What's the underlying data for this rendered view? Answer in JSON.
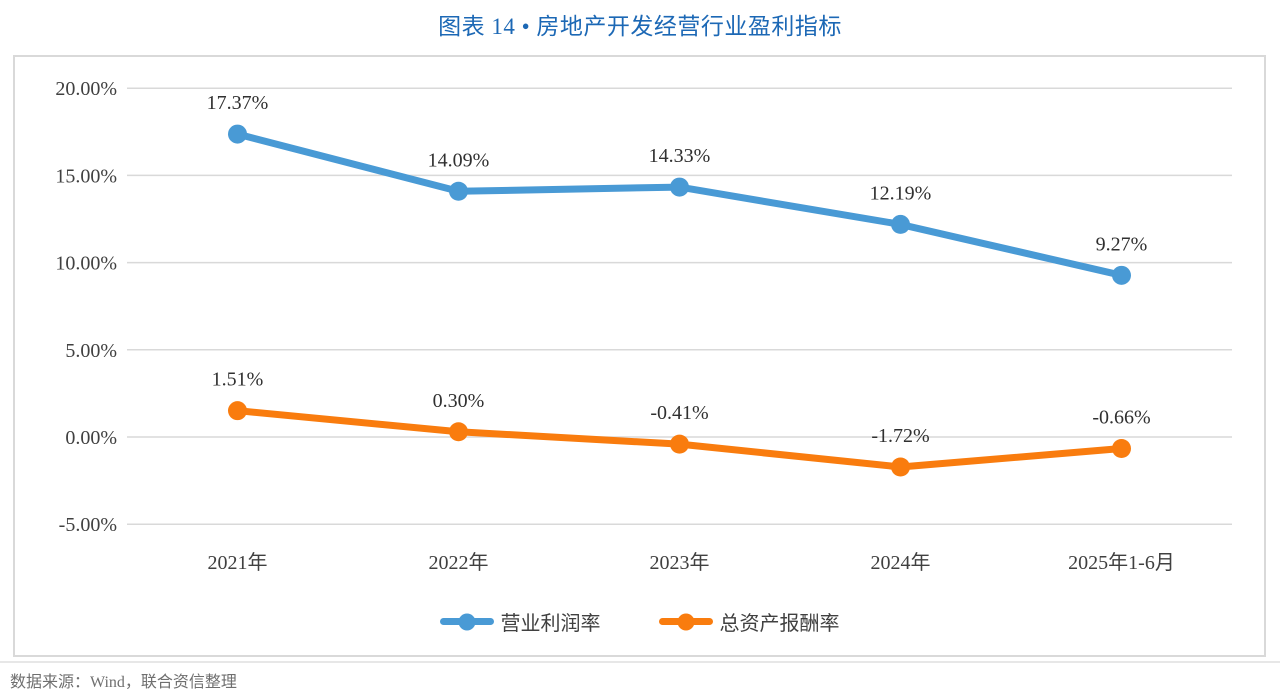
{
  "page": {
    "title": "图表 14 • 房地产开发经营行业盈利指标",
    "source_note": "数据来源：Wind，联合资信整理"
  },
  "colors": {
    "title_text": "#1C68B5",
    "series_blue": "#499AD5",
    "series_orange": "#F97C0E",
    "gridline": "#D9D9D9",
    "border": "#D9D9D9",
    "axis_text": "#404040",
    "data_label_text": "#303030",
    "legend_text": "#404040",
    "footer_text": "#6F6F6F"
  },
  "chart_data": {
    "type": "line",
    "title": "图表 14 • 房地产开发经营行业盈利指标",
    "categories": [
      "2021年",
      "2022年",
      "2023年",
      "2024年",
      "2025年1-6月"
    ],
    "series": [
      {
        "name": "营业利润率",
        "color_key": "series_blue",
        "values": [
          17.37,
          14.09,
          14.33,
          12.19,
          9.27
        ],
        "labels": [
          "17.37%",
          "14.09%",
          "14.33%",
          "12.19%",
          "9.27%"
        ]
      },
      {
        "name": "总资产报酬率",
        "color_key": "series_orange",
        "values": [
          1.51,
          0.3,
          -0.41,
          -1.72,
          -0.66
        ],
        "labels": [
          "1.51%",
          "0.30%",
          "-0.41%",
          "-1.72%",
          "-0.66%"
        ]
      }
    ],
    "y_axis": {
      "min": -5,
      "max": 20,
      "step": 5,
      "tick_labels": [
        "20.00%",
        "15.00%",
        "10.00%",
        "5.00%",
        "0.00%",
        "-5.00%"
      ]
    },
    "xlabel": "",
    "ylabel": "",
    "grid": true,
    "legend_position": "bottom",
    "legend": [
      "营业利润率",
      "总资产报酬率"
    ]
  }
}
